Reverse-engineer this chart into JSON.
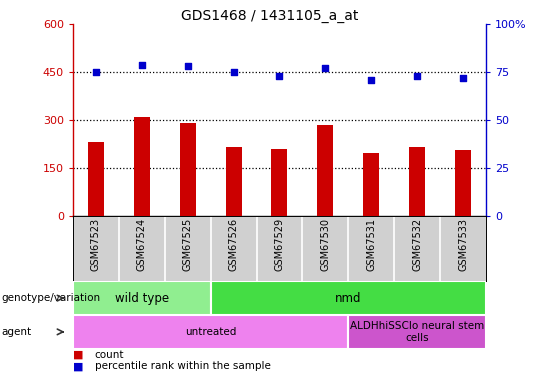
{
  "title": "GDS1468 / 1431105_a_at",
  "samples": [
    "GSM67523",
    "GSM67524",
    "GSM67525",
    "GSM67526",
    "GSM67529",
    "GSM67530",
    "GSM67531",
    "GSM67532",
    "GSM67533"
  ],
  "counts": [
    230,
    310,
    290,
    215,
    210,
    285,
    195,
    215,
    205
  ],
  "percentile_ranks": [
    75,
    79,
    78,
    75,
    73,
    77,
    71,
    73,
    72
  ],
  "bar_color": "#cc0000",
  "dot_color": "#0000cc",
  "left_ylim": [
    0,
    600
  ],
  "right_ylim": [
    0,
    100
  ],
  "left_yticks": [
    0,
    150,
    300,
    450,
    600
  ],
  "right_yticks": [
    0,
    25,
    50,
    75,
    100
  ],
  "right_yticklabels": [
    "0",
    "25",
    "50",
    "75",
    "100%"
  ],
  "grid_values": [
    150,
    300,
    450
  ],
  "genotype_groups": [
    {
      "label": "wild type",
      "start": 0,
      "end": 3,
      "color": "#90ee90"
    },
    {
      "label": "nmd",
      "start": 3,
      "end": 9,
      "color": "#44dd44"
    }
  ],
  "agent_groups": [
    {
      "label": "untreated",
      "start": 0,
      "end": 6,
      "color": "#ee82ee"
    },
    {
      "label": "ALDHhiSSClo neural stem\ncells",
      "start": 6,
      "end": 9,
      "color": "#cc55cc"
    }
  ],
  "legend_items": [
    {
      "label": "count",
      "color": "#cc0000"
    },
    {
      "label": "percentile rank within the sample",
      "color": "#0000cc"
    }
  ],
  "annotation_row1_label": "genotype/variation",
  "annotation_row2_label": "agent",
  "bg_color": "#d0d0d0",
  "chart_bg": "#ffffff"
}
